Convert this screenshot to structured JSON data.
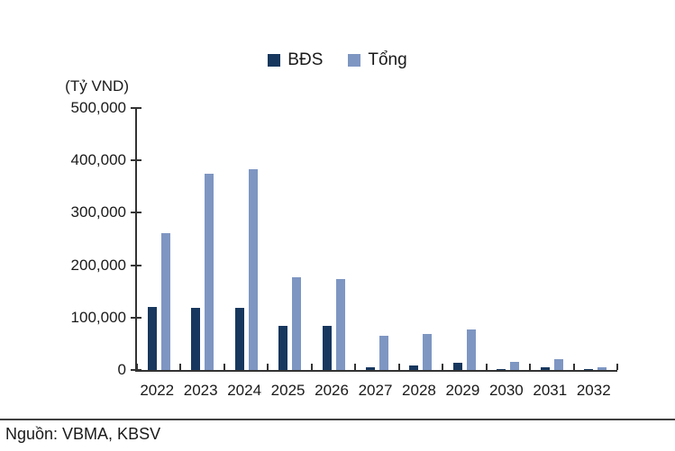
{
  "source": {
    "label": "Nguồn: VBMA, KBSV"
  },
  "chart_data": {
    "type": "bar",
    "title": "(Tỷ VND)",
    "categories": [
      "2022",
      "2023",
      "2024",
      "2025",
      "2026",
      "2027",
      "2028",
      "2029",
      "2030",
      "2031",
      "2032"
    ],
    "series": [
      {
        "name": "BĐS",
        "color": "#17375E",
        "values": [
          120000,
          118000,
          118000,
          84000,
          84000,
          5000,
          8000,
          14000,
          2000,
          5000,
          1000
        ]
      },
      {
        "name": "Tổng",
        "color": "#7E96C2",
        "values": [
          262000,
          375000,
          383000,
          177000,
          174000,
          65000,
          69000,
          78000,
          16000,
          20000,
          5000
        ]
      }
    ],
    "ylim": [
      0,
      500000
    ],
    "yticks": [
      {
        "value": 0,
        "label": "0"
      },
      {
        "value": 100000,
        "label": "100,000"
      },
      {
        "value": 200000,
        "label": "200,000"
      },
      {
        "value": 300000,
        "label": "300,000"
      },
      {
        "value": 400000,
        "label": "400,000"
      },
      {
        "value": 500000,
        "label": "500,000"
      }
    ],
    "grid": false,
    "legend_position": "top-center",
    "axis_color": "#333333"
  }
}
